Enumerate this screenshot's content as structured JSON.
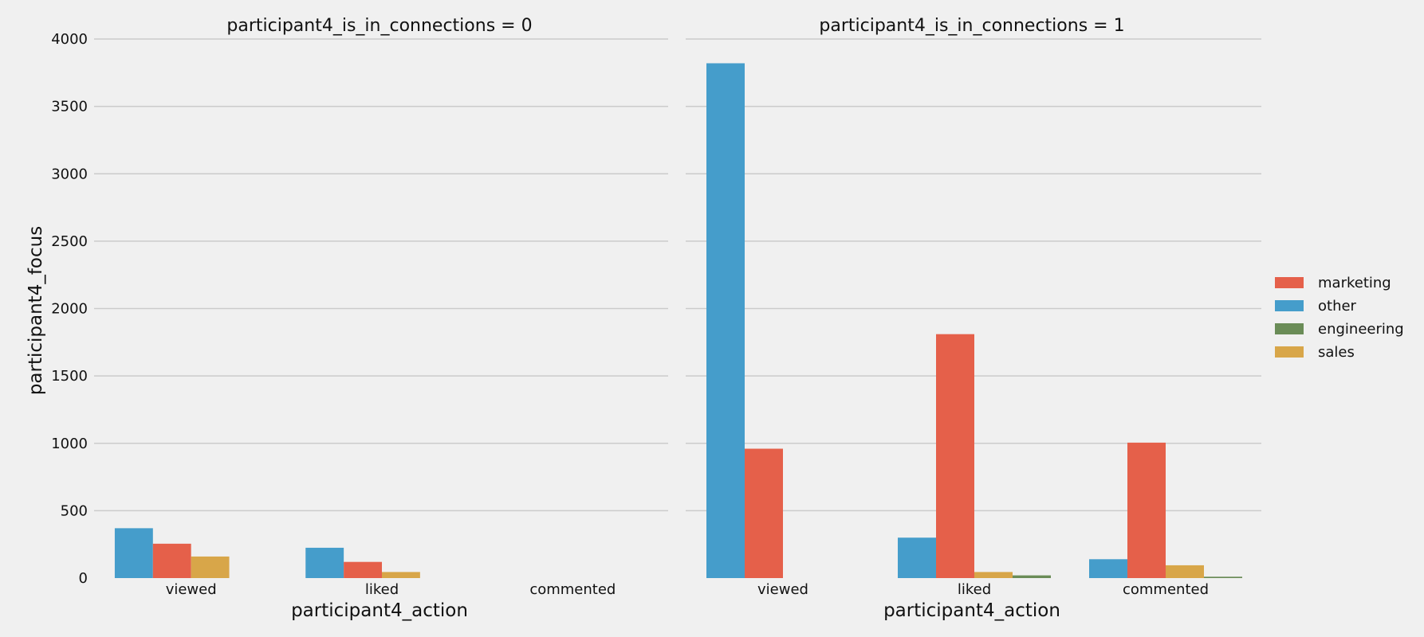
{
  "chart_data": {
    "type": "bar",
    "ylabel": "participant4_focus",
    "ylim": [
      0,
      4000
    ],
    "yticks": [
      0,
      500,
      1000,
      1500,
      2000,
      2500,
      3000,
      3500,
      4000
    ],
    "grid": true,
    "legend_position": "right",
    "hue_order": [
      "other",
      "marketing",
      "sales",
      "engineering"
    ],
    "legend": [
      {
        "name": "marketing",
        "color": "#e5604a"
      },
      {
        "name": "other",
        "color": "#459dcb"
      },
      {
        "name": "engineering",
        "color": "#6a8c57"
      },
      {
        "name": "sales",
        "color": "#d8a649"
      }
    ],
    "panels": [
      {
        "title": "participant4_is_in_connections = 0",
        "xlabel": "participant4_action",
        "categories": [
          "viewed",
          "liked",
          "commented"
        ],
        "series": [
          {
            "name": "other",
            "values": [
              370,
              225,
              0
            ]
          },
          {
            "name": "marketing",
            "values": [
              255,
              120,
              0
            ]
          },
          {
            "name": "sales",
            "values": [
              160,
              45,
              0
            ]
          },
          {
            "name": "engineering",
            "values": [
              0,
              0,
              0
            ]
          }
        ]
      },
      {
        "title": "participant4_is_in_connections = 1",
        "xlabel": "participant4_action",
        "categories": [
          "viewed",
          "liked",
          "commented"
        ],
        "series": [
          {
            "name": "other",
            "values": [
              3820,
              300,
              140
            ]
          },
          {
            "name": "marketing",
            "values": [
              960,
              1810,
              1005
            ]
          },
          {
            "name": "sales",
            "values": [
              0,
              45,
              95
            ]
          },
          {
            "name": "engineering",
            "values": [
              0,
              20,
              10
            ]
          }
        ]
      }
    ]
  }
}
